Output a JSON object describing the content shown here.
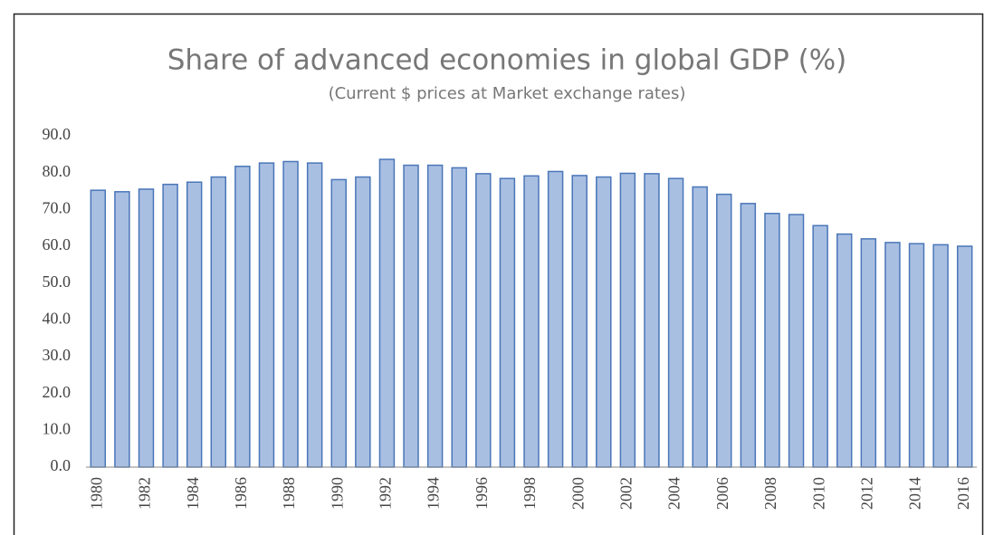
{
  "chart_data": {
    "type": "bar",
    "title": "Share of advanced economies in global GDP (%)",
    "subtitle": "(Current $ prices at Market exchange rates)",
    "categories": [
      "1980",
      null,
      "1982",
      null,
      "1984",
      null,
      "1986",
      null,
      "1988",
      null,
      "1990",
      null,
      "1992",
      null,
      "1994",
      null,
      "1996",
      null,
      "1998",
      null,
      "2000",
      null,
      "2002",
      null,
      "2004",
      null,
      "2006",
      null,
      "2008",
      null,
      "2010",
      null,
      "2012",
      null,
      "2014",
      null,
      "2016"
    ],
    "values": [
      75.2,
      74.8,
      75.5,
      76.8,
      77.4,
      78.8,
      81.7,
      82.6,
      83.0,
      82.6,
      78.1,
      78.8,
      83.6,
      82.0,
      82.0,
      81.3,
      79.7,
      78.4,
      79.1,
      80.3,
      79.2,
      78.8,
      79.8,
      79.7,
      78.4,
      76.1,
      74.1,
      71.6,
      68.9,
      68.6,
      65.6,
      63.3,
      62.0,
      61.0,
      60.7,
      60.4,
      60.0
    ],
    "color": "#a9bfe2",
    "edge_color": "#4a76b8",
    "ylim": [
      0,
      90
    ],
    "yticks": [
      {
        "value": 0,
        "label": "0.0"
      },
      {
        "value": 10,
        "label": "10.0"
      },
      {
        "value": 20,
        "label": "20.0"
      },
      {
        "value": 30,
        "label": "30.0"
      },
      {
        "value": 40,
        "label": "40.0"
      },
      {
        "value": 50,
        "label": "50.0"
      },
      {
        "value": 60,
        "label": "60.0"
      },
      {
        "value": 70,
        "label": "70.0"
      },
      {
        "value": 80,
        "label": "80.0"
      },
      {
        "value": 90,
        "label": "90.0"
      }
    ],
    "grid": false
  }
}
